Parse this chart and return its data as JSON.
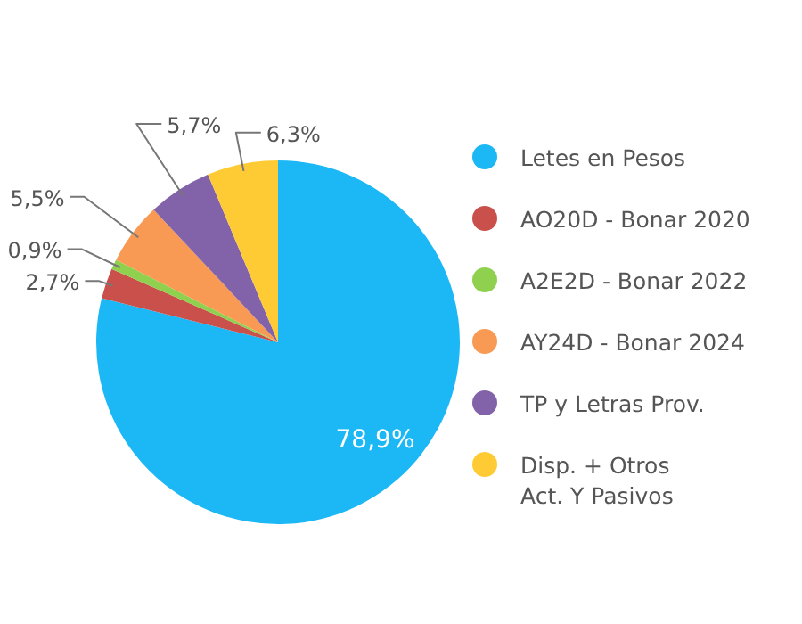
{
  "chart_data": {
    "type": "pie",
    "categories": [
      "Letes en Pesos",
      "AO20D - Bonar 2020",
      "A2E2D - Bonar 2022",
      "AY24D - Bonar 2024",
      "TP y Letras Prov.",
      "Disp. + Otros\nAct. Y Pasivos"
    ],
    "values": [
      78.9,
      2.7,
      0.9,
      5.5,
      5.7,
      6.3
    ],
    "colors": [
      "#1cb8f6",
      "#c9504b",
      "#8fd14f",
      "#f89a53",
      "#8262a8",
      "#ffcb34"
    ],
    "value_labels": [
      "78,9%",
      "2,7%",
      "0,9%",
      "5,5%",
      "5,7%",
      "6,3%"
    ],
    "legend": "right"
  }
}
